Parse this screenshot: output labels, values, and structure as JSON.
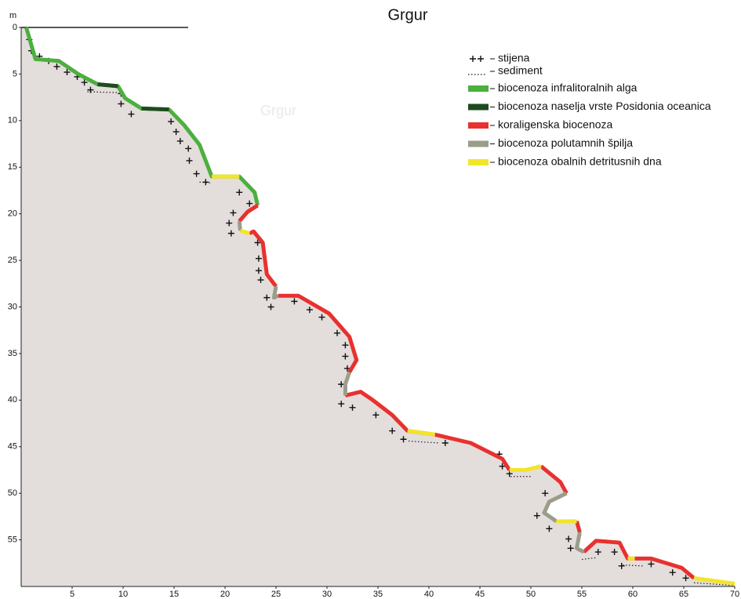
{
  "chart_data": {
    "type": "profile",
    "title": "Grgur",
    "watermark": "Grgur",
    "y_label": "m",
    "xlim": [
      0,
      70
    ],
    "ylim": [
      0,
      60
    ],
    "y_inverted": true,
    "xticks": [
      5,
      10,
      15,
      20,
      25,
      30,
      35,
      40,
      45,
      50,
      55,
      60,
      65,
      70
    ],
    "yticks": [
      0,
      5,
      10,
      15,
      20,
      25,
      30,
      35,
      40,
      45,
      50,
      55
    ],
    "legend": "top-right",
    "fill_color": "#e3dedb",
    "x": [
      0.5,
      1.4,
      3.7,
      5.6,
      7.5,
      9.5,
      10.2,
      11.8,
      14.5,
      16,
      17.5,
      18.7,
      21.4,
      22.9,
      23.2,
      22.2,
      21.4,
      21.5,
      22.4,
      22.8,
      23.7,
      24.1,
      25,
      24.8,
      25.2,
      27.2,
      30.2,
      32.2,
      32.9,
      32.2,
      31.8,
      31.8,
      33.3,
      34.5,
      36.4,
      37.9,
      40.6,
      44.1,
      47.2,
      47.9,
      49.5,
      51,
      52.9,
      53.5,
      51.8,
      51.3,
      52.5,
      54.5,
      54.8,
      54.5,
      55.2,
      56.4,
      58.7,
      59.5,
      60.2,
      61.8,
      64.8,
      66,
      70
    ],
    "series": [
      {
        "name": "biocenoza infralitoralnih alga",
        "color": "#4caf3f",
        "values": [
          0,
          3.4,
          3.6,
          5.0,
          6.1,
          6.3,
          7.6,
          8.7,
          8.8,
          10.5,
          12.6,
          16,
          16,
          17.7,
          19.1,
          null,
          null,
          null,
          null,
          null,
          null,
          null,
          null,
          null,
          null,
          null,
          null,
          null,
          null,
          null,
          null,
          null,
          null,
          null,
          null,
          null,
          null,
          null,
          null,
          null,
          null,
          null,
          null,
          null,
          null,
          null,
          null,
          null,
          null,
          null,
          null,
          null,
          null,
          null,
          null,
          null,
          null,
          null,
          null
        ]
      },
      {
        "name": "biocenoza naselja vrste Posidonia oceanica",
        "color": "#1f4a1f",
        "values": [
          null,
          null,
          null,
          null,
          6.1,
          6.3,
          null,
          8.7,
          8.8,
          null,
          null,
          null,
          null,
          null,
          null,
          null,
          null,
          null,
          null,
          null,
          null,
          null,
          null,
          null,
          null,
          null,
          null,
          null,
          null,
          null,
          null,
          null,
          null,
          null,
          null,
          null,
          null,
          null,
          null,
          null,
          null,
          null,
          null,
          null,
          null,
          null,
          null,
          null,
          null,
          null,
          null,
          null,
          null,
          null,
          null,
          null,
          null,
          null,
          null
        ]
      },
      {
        "name": "koraligenska biocenoza",
        "color": "#e8312f",
        "values": [
          null,
          null,
          null,
          null,
          null,
          null,
          null,
          null,
          null,
          null,
          null,
          null,
          null,
          null,
          19.1,
          19.8,
          20.8,
          null,
          22.1,
          21.9,
          23.1,
          26.5,
          27.8,
          null,
          28.8,
          28.8,
          30.7,
          33.2,
          35.7,
          37,
          null,
          39.5,
          39.1,
          40,
          41.6,
          43.3,
          43.7,
          44.6,
          46.3,
          47.5,
          null,
          47.1,
          48.8,
          50,
          null,
          null,
          null,
          53,
          54.2,
          null,
          56.3,
          55.1,
          55.3,
          57,
          57,
          57,
          58,
          59.1,
          null
        ]
      },
      {
        "name": "biocenoza polutamnih špilja",
        "color": "#9a9d8a",
        "values": [
          null,
          null,
          null,
          null,
          null,
          null,
          null,
          null,
          null,
          null,
          null,
          null,
          null,
          null,
          null,
          null,
          20.8,
          21.8,
          null,
          null,
          null,
          null,
          27.8,
          29,
          28.8,
          null,
          null,
          null,
          null,
          37,
          38.3,
          39.5,
          null,
          null,
          null,
          null,
          null,
          null,
          null,
          null,
          null,
          null,
          null,
          50,
          50.9,
          52.1,
          53,
          null,
          54.2,
          55.9,
          56.3,
          null,
          null,
          null,
          null,
          null,
          null,
          null,
          null
        ]
      },
      {
        "name": "biocenoza obalnih detritusnih dna",
        "color": "#f2e52a",
        "values": [
          null,
          null,
          null,
          null,
          null,
          null,
          null,
          null,
          null,
          null,
          null,
          16,
          16,
          null,
          null,
          null,
          null,
          21.8,
          22.1,
          null,
          null,
          null,
          null,
          null,
          null,
          null,
          null,
          null,
          null,
          null,
          null,
          null,
          null,
          null,
          null,
          43.3,
          43.7,
          null,
          null,
          47.5,
          47.5,
          47.1,
          null,
          null,
          null,
          null,
          53,
          53,
          null,
          null,
          null,
          null,
          null,
          57,
          57,
          null,
          null,
          59.1,
          59.7
        ]
      }
    ],
    "markers": {
      "name": "stijena",
      "x": [
        0.8,
        1.0,
        1.8,
        2.7,
        3.5,
        4.5,
        5.5,
        6.2,
        6.8,
        9.8,
        9.8,
        10.8,
        14.7,
        15.2,
        15.6,
        16.4,
        16.5,
        17.2,
        18.1,
        21.4,
        22.4,
        20.8,
        20.4,
        20.6,
        23.2,
        23.3,
        23.3,
        23.5,
        24.1,
        24.5,
        26.8,
        28.3,
        29.5,
        31.0,
        31.8,
        31.8,
        32.0,
        31.4,
        31.4,
        32.5,
        34.8,
        36.4,
        37.5,
        41.6,
        46.9,
        47.2,
        47.9,
        51.4,
        50.6,
        51.8,
        53.7,
        53.9,
        56.6,
        58.2,
        58.9,
        61.8,
        63.9,
        65.2
      ],
      "values": [
        1.3,
        2.5,
        3.1,
        3.6,
        4.2,
        4.8,
        5.3,
        5.9,
        6.7,
        7.1,
        8.2,
        9.3,
        10.1,
        11.2,
        12.2,
        13.0,
        14.3,
        15.7,
        16.6,
        17.7,
        18.9,
        19.9,
        21.0,
        22.1,
        23.1,
        24.8,
        26.1,
        27.1,
        29.0,
        30.0,
        29.4,
        30.3,
        31.1,
        32.8,
        34.1,
        35.3,
        36.6,
        38.3,
        40.4,
        40.8,
        41.6,
        43.3,
        44.2,
        44.6,
        45.8,
        47.1,
        47.9,
        50.0,
        52.4,
        53.8,
        54.9,
        55.9,
        56.3,
        56.3,
        57.8,
        57.6,
        58.5,
        59.1
      ]
    },
    "sediment": {
      "name": "sediment",
      "x": [
        6.5,
        9.5,
        13,
        17.5,
        18.7,
        28,
        38,
        41,
        44,
        48,
        50,
        52,
        55,
        56.5,
        57.8,
        59,
        61,
        63,
        66,
        70
      ],
      "values": [
        6.9,
        7.0,
        null,
        16.6,
        16.7,
        null,
        44.4,
        44.6,
        null,
        48.2,
        48.2,
        null,
        57.1,
        56.9,
        null,
        57.7,
        57.8,
        null,
        59.6,
        59.9
      ]
    }
  }
}
